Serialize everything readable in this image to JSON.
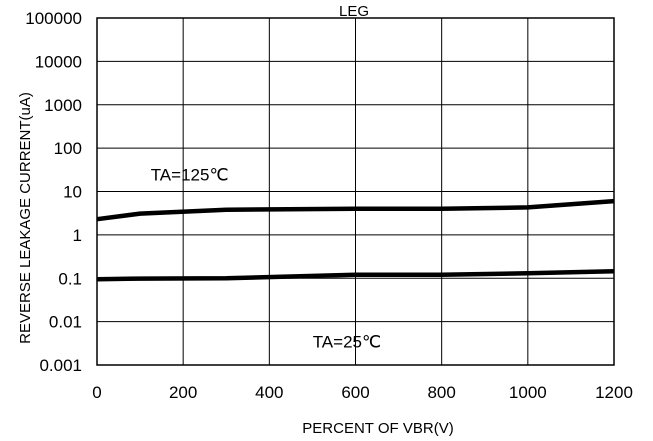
{
  "chart_data": {
    "type": "line",
    "title": "LEG",
    "xlabel": "PERCENT OF VBR(V)",
    "ylabel": "REVERSE LEAKAGE CURRENT(uA)",
    "xlim": [
      0,
      1200
    ],
    "ylim": [
      0.001,
      100000
    ],
    "yscale": "log",
    "grid": true,
    "x_ticks": [
      "0",
      "200",
      "400",
      "600",
      "800",
      "1000",
      "1200"
    ],
    "y_ticks": [
      "0.001",
      "0.01",
      "0.1",
      "1",
      "10",
      "100",
      "1000",
      "10000",
      "100000"
    ],
    "annotations": [
      {
        "text": "TA=125℃",
        "x": 215,
        "y": 18
      },
      {
        "text": "TA=25℃",
        "x": 580,
        "y": 0.0025
      }
    ],
    "series": [
      {
        "name": "",
        "x": [
          0,
          100,
          300,
          600,
          800,
          1000,
          1200
        ],
        "y": [
          2.3,
          3.1,
          3.8,
          4.0,
          4.0,
          4.3,
          6.0
        ]
      },
      {
        "name": "",
        "x": [
          0,
          100,
          300,
          600,
          800,
          1000,
          1200
        ],
        "y": [
          0.095,
          0.098,
          0.1,
          0.12,
          0.12,
          0.13,
          0.145
        ]
      }
    ]
  }
}
